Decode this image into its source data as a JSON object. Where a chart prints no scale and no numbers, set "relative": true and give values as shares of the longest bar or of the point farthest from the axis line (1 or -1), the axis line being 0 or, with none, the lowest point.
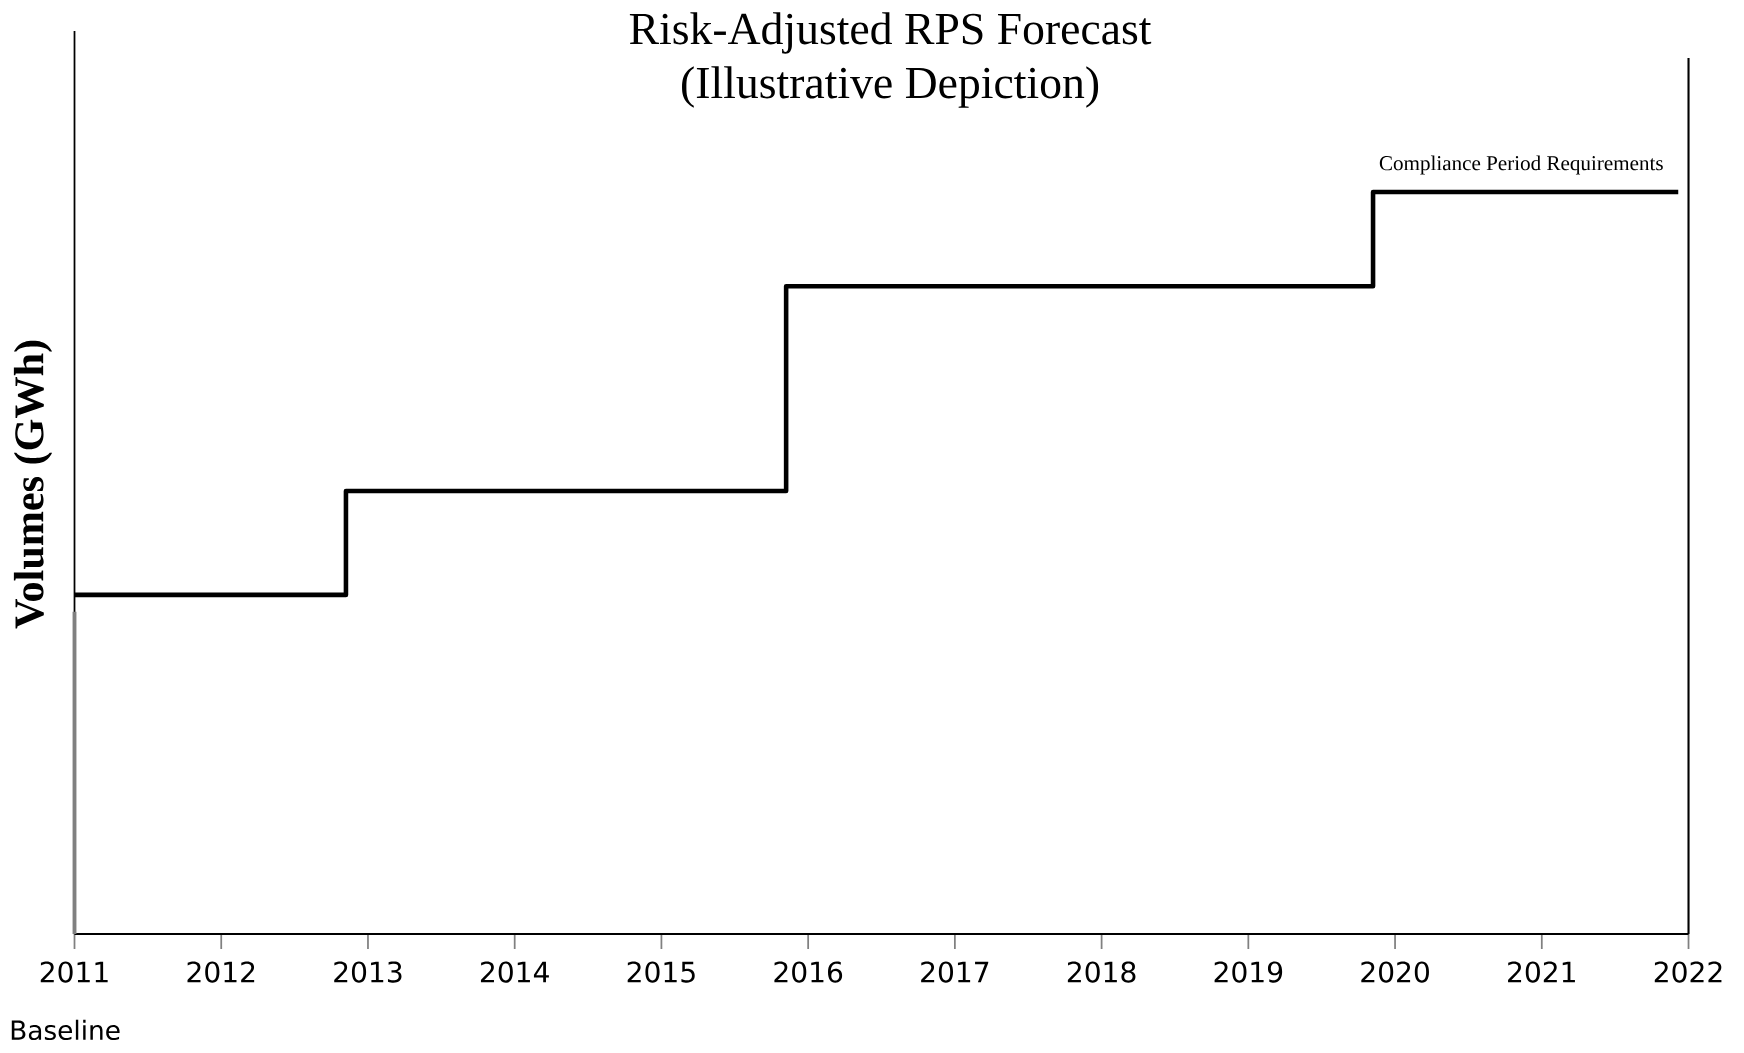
{
  "chart_data": {
    "type": "step",
    "title": "Risk-Adjusted RPS Forecast",
    "subtitle": "(Illustrative Depiction)",
    "ylabel": "Volumes (GWh)",
    "relative": true,
    "x": [
      2011,
      2012.85,
      2015.85,
      2019.85,
      2021.93
    ],
    "values": [
      0.457,
      0.597,
      0.873,
      1.0,
      1.0
    ],
    "color": "#000000",
    "xlim": [
      2011,
      2022
    ],
    "xticks": [
      2011,
      2012,
      2013,
      2014,
      2015,
      2016,
      2017,
      2018,
      2019,
      2020,
      2021,
      2022
    ],
    "annotations": [
      {
        "text": "Compliance Period Requirements",
        "x": 2020.86,
        "y": 1.0
      },
      "Baseline"
    ],
    "ref_lines": [
      {
        "axis": "x",
        "value": 2011,
        "color": "#808080"
      },
      {
        "axis": "x",
        "value": 2022,
        "color": "#000000"
      }
    ]
  }
}
